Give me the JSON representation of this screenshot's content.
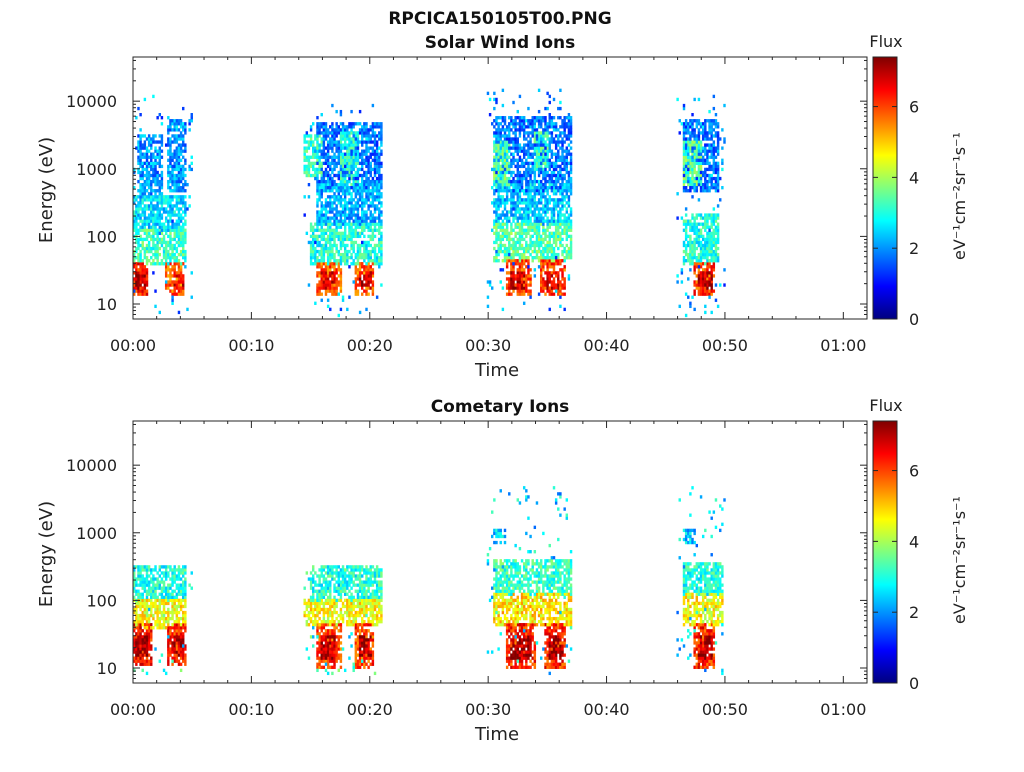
{
  "figure": {
    "title": "RPCICA150105T00.PNG"
  },
  "colors": {
    "colormap": [
      "#00007f",
      "#0000ff",
      "#007fff",
      "#00ffff",
      "#7fff7f",
      "#ffff00",
      "#ff7f00",
      "#ff0000",
      "#7f0000"
    ]
  },
  "chart_data": [
    {
      "type": "heatmap",
      "title": "Solar Wind Ions",
      "xlabel": "Time",
      "ylabel": "Energy (eV)",
      "x_ticks": [
        "00:00",
        "00:10",
        "00:20",
        "00:30",
        "00:40",
        "00:50",
        "01:00"
      ],
      "x_tick_minutes": [
        0,
        10,
        20,
        30,
        40,
        50,
        60
      ],
      "xlim_minutes": [
        0,
        62
      ],
      "y_ticks": [
        "10",
        "100",
        "1000",
        "10000"
      ],
      "y_tick_values": [
        10,
        100,
        1000,
        10000
      ],
      "ylim": [
        6,
        45000
      ],
      "y_scale": "log",
      "colorbar": {
        "label": "Flux",
        "units": "eV⁻¹cm⁻²sr⁻¹s⁻¹",
        "ticks": [
          "0",
          "2",
          "4",
          "6"
        ],
        "tick_values": [
          0,
          2,
          4,
          6
        ],
        "range": [
          0,
          7.4
        ]
      },
      "blobs": [
        {
          "t": [
            0.0,
            1.2
          ],
          "e": [
            14,
            40
          ],
          "flux": 6.2
        },
        {
          "t": [
            0.2,
            1.0
          ],
          "e": [
            18,
            28
          ],
          "flux": 7.0
        },
        {
          "t": [
            2.8,
            4.3
          ],
          "e": [
            14,
            40
          ],
          "flux": 5.8
        },
        {
          "t": [
            3.5,
            4.2
          ],
          "e": [
            18,
            28
          ],
          "flux": 6.6
        },
        {
          "t": [
            0.0,
            4.5
          ],
          "e": [
            40,
            120
          ],
          "flux": 3.2
        },
        {
          "t": [
            0.0,
            4.5
          ],
          "e": [
            120,
            400
          ],
          "flux": 2.6
        },
        {
          "t": [
            0.5,
            2.5
          ],
          "e": [
            400,
            3000
          ],
          "flux": 2.0
        },
        {
          "t": [
            3.0,
            4.5
          ],
          "e": [
            500,
            5000
          ],
          "flux": 2.0
        },
        {
          "t": [
            15.5,
            17.5
          ],
          "e": [
            14,
            40
          ],
          "flux": 5.8
        },
        {
          "t": [
            16.0,
            17.0
          ],
          "e": [
            18,
            28
          ],
          "flux": 6.6
        },
        {
          "t": [
            18.8,
            20.2
          ],
          "e": [
            14,
            40
          ],
          "flux": 5.8
        },
        {
          "t": [
            19.2,
            20.0
          ],
          "e": [
            18,
            28
          ],
          "flux": 6.8
        },
        {
          "t": [
            15.0,
            21.0
          ],
          "e": [
            40,
            150
          ],
          "flux": 3.0
        },
        {
          "t": [
            15.5,
            21.0
          ],
          "e": [
            150,
            600
          ],
          "flux": 2.2
        },
        {
          "t": [
            14.5,
            16.0
          ],
          "e": [
            800,
            3000
          ],
          "flux": 3.2
        },
        {
          "t": [
            17.5,
            19.0
          ],
          "e": [
            600,
            3500
          ],
          "flux": 3.0
        },
        {
          "t": [
            15.5,
            21.0
          ],
          "e": [
            500,
            4500
          ],
          "flux": 1.8
        },
        {
          "t": [
            31.5,
            33.5
          ],
          "e": [
            14,
            45
          ],
          "flux": 6.0
        },
        {
          "t": [
            32.0,
            33.0
          ],
          "e": [
            18,
            28
          ],
          "flux": 6.8
        },
        {
          "t": [
            34.5,
            36.5
          ],
          "e": [
            14,
            45
          ],
          "flux": 6.0
        },
        {
          "t": [
            35.0,
            36.0
          ],
          "e": [
            18,
            28
          ],
          "flux": 6.6
        },
        {
          "t": [
            30.5,
            37.0
          ],
          "e": [
            45,
            150
          ],
          "flux": 3.4
        },
        {
          "t": [
            30.5,
            37.0
          ],
          "e": [
            150,
            600
          ],
          "flux": 2.4
        },
        {
          "t": [
            30.5,
            31.8
          ],
          "e": [
            600,
            2500
          ],
          "flux": 3.4
        },
        {
          "t": [
            34.0,
            35.0
          ],
          "e": [
            1000,
            3500
          ],
          "flux": 3.2
        },
        {
          "t": [
            30.5,
            37.0
          ],
          "e": [
            500,
            6000
          ],
          "flux": 1.8
        },
        {
          "t": [
            47.5,
            49.0
          ],
          "e": [
            14,
            40
          ],
          "flux": 6.0
        },
        {
          "t": [
            47.8,
            48.8
          ],
          "e": [
            18,
            28
          ],
          "flux": 6.8
        },
        {
          "t": [
            46.5,
            49.5
          ],
          "e": [
            40,
            200
          ],
          "flux": 3.0
        },
        {
          "t": [
            46.5,
            48.0
          ],
          "e": [
            600,
            2500
          ],
          "flux": 3.4
        },
        {
          "t": [
            46.5,
            49.5
          ],
          "e": [
            500,
            5000
          ],
          "flux": 1.8
        },
        {
          "t": [
            12.5,
            13.0
          ],
          "e": [
            1000,
            1300
          ],
          "flux": 0.0
        }
      ],
      "sparse": [
        {
          "t": [
            0.0,
            5.0
          ],
          "e": [
            6,
            12000
          ],
          "flux": 2.0
        },
        {
          "t": [
            14.5,
            21.0
          ],
          "e": [
            6,
            9000
          ],
          "flux": 2.0
        },
        {
          "t": [
            30.0,
            37.0
          ],
          "e": [
            6,
            15000
          ],
          "flux": 2.0
        },
        {
          "t": [
            46.0,
            50.0
          ],
          "e": [
            6,
            12000
          ],
          "flux": 2.0
        }
      ]
    },
    {
      "type": "heatmap",
      "title": "Cometary Ions",
      "xlabel": "Time",
      "ylabel": "Energy (eV)",
      "x_ticks": [
        "00:00",
        "00:10",
        "00:20",
        "00:30",
        "00:40",
        "00:50",
        "01:00"
      ],
      "x_tick_minutes": [
        0,
        10,
        20,
        30,
        40,
        50,
        60
      ],
      "xlim_minutes": [
        0,
        62
      ],
      "y_ticks": [
        "10",
        "100",
        "1000",
        "10000"
      ],
      "y_tick_values": [
        10,
        100,
        1000,
        10000
      ],
      "ylim": [
        6,
        45000
      ],
      "y_scale": "log",
      "colorbar": {
        "label": "Flux",
        "units": "eV⁻¹cm⁻²sr⁻¹s⁻¹",
        "ticks": [
          "0",
          "2",
          "4",
          "6"
        ],
        "tick_values": [
          0,
          2,
          4,
          6
        ],
        "range": [
          0,
          7.4
        ]
      },
      "blobs": [
        {
          "t": [
            0.0,
            1.5
          ],
          "e": [
            12,
            45
          ],
          "flux": 6.4
        },
        {
          "t": [
            0.3,
            1.2
          ],
          "e": [
            16,
            30
          ],
          "flux": 7.2
        },
        {
          "t": [
            3.0,
            4.5
          ],
          "e": [
            12,
            45
          ],
          "flux": 6.2
        },
        {
          "t": [
            3.4,
            4.2
          ],
          "e": [
            16,
            30
          ],
          "flux": 7.0
        },
        {
          "t": [
            0.0,
            4.5
          ],
          "e": [
            40,
            100
          ],
          "flux": 4.6
        },
        {
          "t": [
            0.0,
            4.5
          ],
          "e": [
            100,
            300
          ],
          "flux": 3.0
        },
        {
          "t": [
            15.5,
            17.5
          ],
          "e": [
            10,
            45
          ],
          "flux": 6.0
        },
        {
          "t": [
            16.0,
            17.0
          ],
          "e": [
            14,
            28
          ],
          "flux": 7.0
        },
        {
          "t": [
            18.8,
            20.3
          ],
          "e": [
            10,
            45
          ],
          "flux": 6.0
        },
        {
          "t": [
            19.2,
            20.0
          ],
          "e": [
            14,
            28
          ],
          "flux": 7.2
        },
        {
          "t": [
            14.5,
            21.0
          ],
          "e": [
            45,
            100
          ],
          "flux": 4.6
        },
        {
          "t": [
            15.0,
            21.0
          ],
          "e": [
            100,
            300
          ],
          "flux": 3.0
        },
        {
          "t": [
            31.5,
            34.0
          ],
          "e": [
            10,
            45
          ],
          "flux": 6.2
        },
        {
          "t": [
            32.0,
            33.5
          ],
          "e": [
            14,
            28
          ],
          "flux": 7.2
        },
        {
          "t": [
            34.8,
            36.5
          ],
          "e": [
            10,
            45
          ],
          "flux": 6.2
        },
        {
          "t": [
            35.2,
            36.2
          ],
          "e": [
            14,
            28
          ],
          "flux": 7.2
        },
        {
          "t": [
            30.5,
            37.0
          ],
          "e": [
            45,
            120
          ],
          "flux": 4.8
        },
        {
          "t": [
            30.5,
            37.0
          ],
          "e": [
            120,
            400
          ],
          "flux": 3.2
        },
        {
          "t": [
            30.5,
            31.5
          ],
          "e": [
            700,
            1100
          ],
          "flux": 2.4
        },
        {
          "t": [
            47.5,
            49.0
          ],
          "e": [
            10,
            45
          ],
          "flux": 6.2
        },
        {
          "t": [
            47.8,
            48.8
          ],
          "e": [
            14,
            28
          ],
          "flux": 7.0
        },
        {
          "t": [
            46.5,
            49.8
          ],
          "e": [
            45,
            120
          ],
          "flux": 4.6
        },
        {
          "t": [
            46.5,
            49.8
          ],
          "e": [
            120,
            350
          ],
          "flux": 3.0
        },
        {
          "t": [
            46.5,
            47.5
          ],
          "e": [
            700,
            1100
          ],
          "flux": 2.4
        }
      ],
      "sparse": [
        {
          "t": [
            0.0,
            5.0
          ],
          "e": [
            8,
            350
          ],
          "flux": 3.0
        },
        {
          "t": [
            14.5,
            21.0
          ],
          "e": [
            8,
            300
          ],
          "flux": 3.0
        },
        {
          "t": [
            30.0,
            37.0
          ],
          "e": [
            8,
            4500
          ],
          "flux": 2.5
        },
        {
          "t": [
            46.0,
            50.0
          ],
          "e": [
            8,
            4500
          ],
          "flux": 2.5
        }
      ]
    }
  ]
}
